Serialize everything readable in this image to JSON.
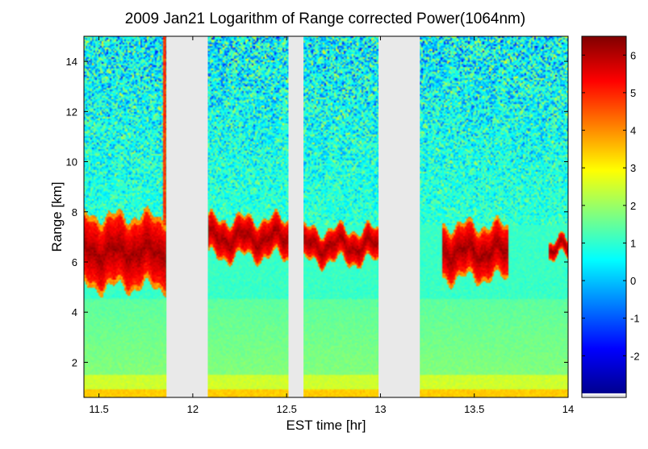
{
  "chart_data": {
    "type": "heatmap",
    "title": "2009 Jan21  Logarithm of Range corrected Power(1064nm)",
    "xlabel": "EST time [hr]",
    "ylabel": "Range [km]",
    "xlim": [
      11.42,
      14.0
    ],
    "ylim": [
      0.6,
      15.0
    ],
    "xticks": [
      11.5,
      12,
      12.5,
      13,
      13.5,
      14
    ],
    "xtick_labels": [
      "11.5",
      "12",
      "12.5",
      "13",
      "13.5",
      "14"
    ],
    "yticks": [
      2,
      4,
      6,
      8,
      10,
      12,
      14
    ],
    "ytick_labels": [
      "2",
      "4",
      "6",
      "8",
      "10",
      "12",
      "14"
    ],
    "colorbar": {
      "range": [
        -3,
        6.5
      ],
      "ticks": [
        -2,
        -1,
        0,
        1,
        2,
        3,
        4,
        5,
        6
      ],
      "tick_labels": [
        "-2",
        "-1",
        "0",
        "1",
        "2",
        "3",
        "4",
        "5",
        "6"
      ]
    },
    "data_gaps_hr": [
      [
        11.86,
        12.08
      ],
      [
        12.51,
        12.59
      ],
      [
        12.99,
        13.21
      ]
    ],
    "cloud_layers": [
      {
        "x": [
          11.42,
          11.86
        ],
        "y_km": [
          5.2,
          7.6
        ]
      },
      {
        "x": [
          12.08,
          12.51
        ],
        "y_km": [
          6.3,
          7.6
        ]
      },
      {
        "x": [
          12.59,
          12.99
        ],
        "y_km": [
          6.1,
          7.2
        ]
      },
      {
        "x": [
          13.33,
          13.68
        ],
        "y_km": [
          5.5,
          7.3
        ]
      },
      {
        "x": [
          13.9,
          14.0
        ],
        "y_km": [
          6.2,
          6.8
        ]
      }
    ]
  }
}
